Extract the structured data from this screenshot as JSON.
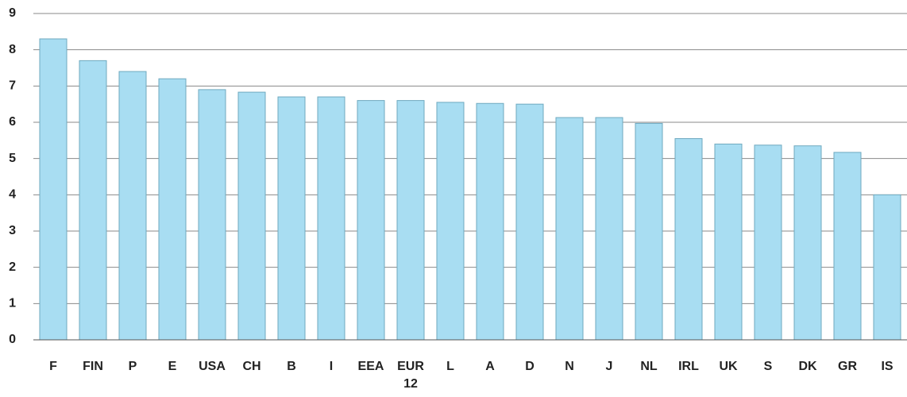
{
  "chart_data": {
    "type": "bar",
    "categories": [
      "F",
      "FIN",
      "P",
      "E",
      "USA",
      "CH",
      "B",
      "I",
      "EEA",
      "EUR 12",
      "L",
      "A",
      "D",
      "N",
      "J",
      "NL",
      "IRL",
      "UK",
      "S",
      "DK",
      "GR",
      "IS"
    ],
    "values": [
      8.3,
      7.7,
      7.4,
      7.2,
      6.9,
      6.83,
      6.7,
      6.7,
      6.6,
      6.6,
      6.55,
      6.52,
      6.5,
      6.13,
      6.13,
      5.97,
      5.55,
      5.4,
      5.37,
      5.35,
      5.17,
      4.0
    ],
    "color": "#a8ddf2",
    "ylim": [
      0,
      9
    ],
    "yticks": [
      0,
      1,
      2,
      3,
      4,
      5,
      6,
      7,
      8,
      9
    ],
    "grid": true
  }
}
